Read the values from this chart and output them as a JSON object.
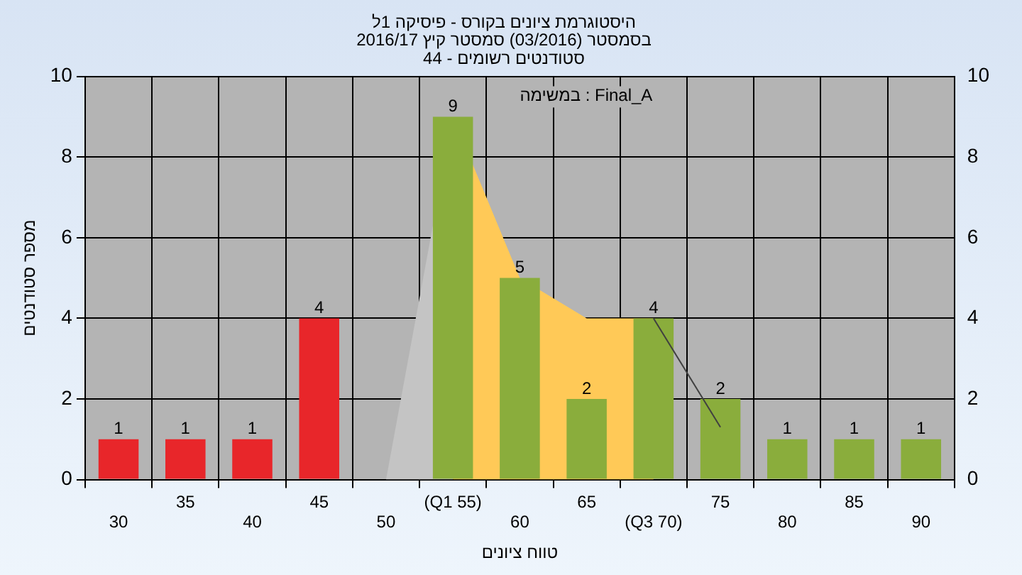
{
  "chart_data": {
    "type": "bar",
    "title": "היסטוגרמת ציונים בקורס - פיסיקה 1ל",
    "subtitle": "בסמסטר (03/2016) סמסטר קיץ 2016/17\nסטודנטים רשומים - 44",
    "xlabel": "טווח ציונים",
    "ylabel": "מספר סטודנטים",
    "annotations": [
      "במשימה : Final_A"
    ],
    "categories": [
      "30",
      "35",
      "40",
      "45",
      "50",
      "(Q1 55)",
      "60",
      "65",
      "(Q3 70)",
      "75",
      "80",
      "85",
      "90"
    ],
    "series": [
      {
        "colors": [
          "#e8262a",
          "#e8262a",
          "#e8262a",
          "#e8262a",
          "#8aad3c",
          "#8aad3c",
          "#8aad3c",
          "#8aad3c",
          "#8aad3c",
          "#8aad3c",
          "#8aad3c",
          "#8aad3c",
          "#8aad3c"
        ],
        "values": [
          1,
          1,
          1,
          4,
          0,
          9,
          5,
          2,
          4,
          2,
          1,
          1,
          1
        ],
        "value_labels": [
          "1",
          "1",
          "1",
          "4",
          null,
          "9",
          "5",
          "2",
          "4",
          "2",
          "1",
          "1",
          "1"
        ]
      },
      {
        "type": "area",
        "color": "#c4c4c4",
        "values": [
          null,
          null,
          null,
          null,
          0,
          9,
          null,
          null,
          null,
          null,
          null,
          null,
          null
        ]
      },
      {
        "type": "area",
        "color": "#ffc957",
        "values": [
          null,
          null,
          null,
          null,
          null,
          9,
          5,
          4,
          4,
          null,
          null,
          null,
          null
        ]
      },
      {
        "type": "line",
        "color": "#404040",
        "values": [
          null,
          null,
          null,
          null,
          null,
          null,
          null,
          null,
          4,
          1.3,
          null,
          null,
          null
        ]
      }
    ],
    "ylim": [
      0,
      10
    ],
    "yticks": [
      0,
      2,
      4,
      6,
      8,
      10
    ],
    "y2lim": [
      0,
      10
    ],
    "y2ticks": [
      0,
      2,
      4,
      6,
      8,
      10
    ],
    "grid": true,
    "legend": false
  }
}
